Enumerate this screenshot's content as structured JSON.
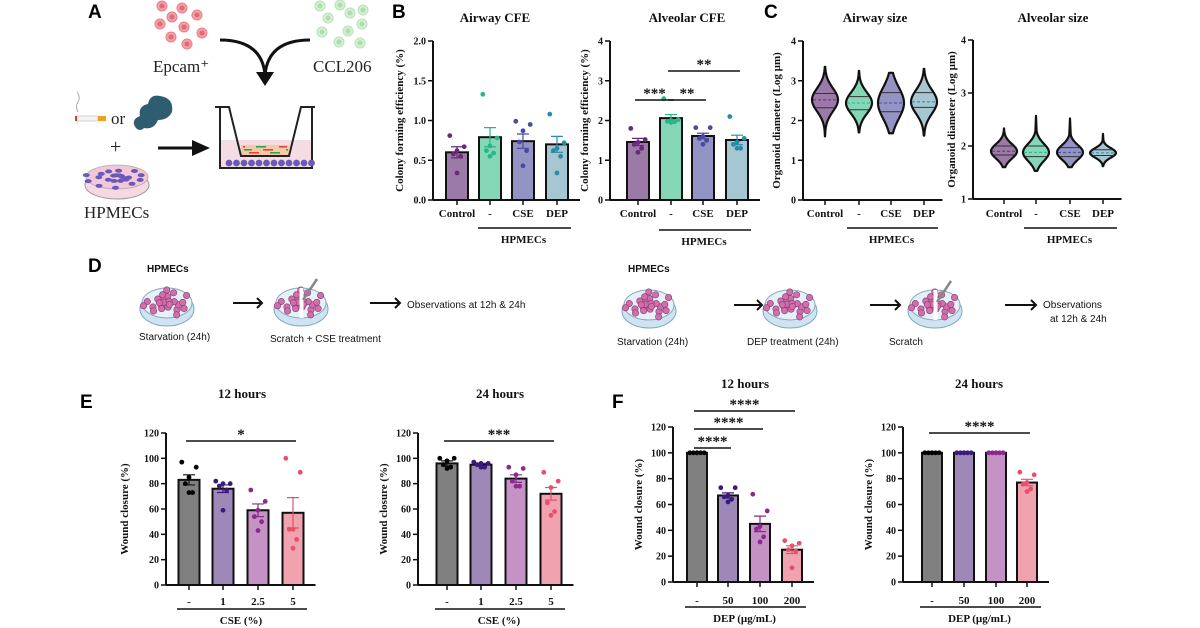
{
  "panels": {
    "a": "A",
    "b": "B",
    "c": "C",
    "d": "D",
    "e": "E",
    "f": "F"
  },
  "diagram_a": {
    "epcam": "Epcam⁺",
    "ccl206": "CCL206",
    "or": "or",
    "plus": "+",
    "hpmecs": "HPMECs",
    "colors": {
      "epcam": "#e8707a",
      "ccl206": "#a8dca8",
      "hpmec": "#5a4aa8",
      "smoke": "#2e5c70"
    }
  },
  "diagram_d": {
    "left": {
      "cells": "HPMECs",
      "step1": "Starvation (24h)",
      "step2": "Scratch + CSE treatment",
      "result": "Observations at 12h & 24h"
    },
    "right": {
      "cells": "HPMECs",
      "step1": "Starvation (24h)",
      "step2": "DEP treatment (24h)",
      "step3": "Scratch",
      "result_1": "Observations",
      "result_2": "at 12h & 24h"
    }
  },
  "chart_data": [
    {
      "type": "bar",
      "title": "Airway CFE",
      "ylabel": "Colony forming efficiency (%)",
      "ylim": [
        0,
        2
      ],
      "yticks": [
        0,
        0.5,
        1,
        1.5,
        2
      ],
      "ytick_labels": [
        "0.0",
        "0.5",
        "1.0",
        "1.5",
        "2.0"
      ],
      "categories": [
        "Control",
        "-",
        "CSE",
        "DEP"
      ],
      "group_label": "HPMECs",
      "group_span": [
        1,
        3
      ],
      "values": [
        0.6,
        0.79,
        0.74,
        0.7
      ],
      "sem": [
        0.07,
        0.12,
        0.09,
        0.1
      ],
      "points": [
        [
          0.81,
          0.67,
          0.62,
          0.58,
          0.55,
          0.34
        ],
        [
          1.33,
          0.78,
          0.68,
          0.62,
          0.59,
          0.55
        ],
        [
          0.99,
          0.95,
          0.87,
          0.73,
          0.62,
          0.43
        ],
        [
          1.08,
          0.72,
          0.65,
          0.62,
          0.55,
          0.34
        ]
      ],
      "colors": [
        "#9b7aa8",
        "#86d6b8",
        "#9494c4",
        "#a6c6d2"
      ],
      "point_colors": [
        "#6a2a7a",
        "#2bb58a",
        "#4a4aa0",
        "#2a8aa8"
      ],
      "significance": []
    },
    {
      "type": "bar",
      "title": "Alveolar CFE",
      "ylabel": "Colony forming efficiency (%)",
      "ylim": [
        0,
        4
      ],
      "yticks": [
        0,
        1,
        2,
        3,
        4
      ],
      "ytick_labels": [
        "0",
        "1",
        "2",
        "3",
        "4"
      ],
      "categories": [
        "Control",
        "-",
        "CSE",
        "DEP"
      ],
      "group_label": "HPMECs",
      "group_span": [
        1,
        3
      ],
      "values": [
        1.46,
        2.06,
        1.61,
        1.51
      ],
      "sem": [
        0.09,
        0.09,
        0.07,
        0.12
      ],
      "points": [
        [
          1.8,
          1.52,
          1.45,
          1.4,
          1.3,
          1.2
        ],
        [
          2.55,
          2.02,
          2.0,
          1.98,
          1.97,
          1.95
        ],
        [
          1.82,
          1.82,
          1.6,
          1.55,
          1.5,
          1.4
        ],
        [
          2.1,
          1.55,
          1.45,
          1.4,
          1.3,
          1.3
        ]
      ],
      "colors": [
        "#9b7aa8",
        "#86d6b8",
        "#9494c4",
        "#a6c6d2"
      ],
      "point_colors": [
        "#6a2a7a",
        "#2bb58a",
        "#4a4aa0",
        "#2a8aa8"
      ],
      "significance": [
        {
          "from": 0,
          "to": 1,
          "label": "***"
        },
        {
          "from": 1,
          "to": 2,
          "label": "**"
        },
        {
          "from": 1,
          "to": 3,
          "label": "**"
        }
      ]
    },
    {
      "type": "violin",
      "title": "Airway size",
      "ylabel": "Organoid diameter (Log µm)",
      "ylim": [
        0,
        4
      ],
      "yticks": [
        0,
        1,
        2,
        3,
        4
      ],
      "ytick_labels": [
        "0",
        "1",
        "2",
        "3",
        "4"
      ],
      "categories": [
        "Control",
        "-",
        "CSE",
        "DEP"
      ],
      "group_label": "HPMECs",
      "group_span": [
        1,
        3
      ],
      "violins": [
        {
          "min": 1.6,
          "q1": 2.32,
          "median": 2.52,
          "q3": 2.68,
          "max": 3.35
        },
        {
          "min": 1.7,
          "q1": 2.27,
          "median": 2.44,
          "q3": 2.6,
          "max": 3.25
        },
        {
          "min": 1.68,
          "q1": 2.22,
          "median": 2.44,
          "q3": 2.7,
          "max": 3.2
        },
        {
          "min": 1.62,
          "q1": 2.33,
          "median": 2.47,
          "q3": 2.7,
          "max": 3.3
        }
      ],
      "colors": [
        "#9b7aa8",
        "#86d6b8",
        "#9494c4",
        "#a6c6d2"
      ],
      "median_colors": [
        "#6a2a7a",
        "#2bb58a",
        "#4a4aa0",
        "#2a8aa8"
      ]
    },
    {
      "type": "violin",
      "title": "Alveolar size",
      "ylabel": "Organoid diameter (Log µm)",
      "ylim": [
        1,
        4
      ],
      "yticks": [
        1,
        2,
        3,
        4
      ],
      "ytick_labels": [
        "1",
        "2",
        "3",
        "4"
      ],
      "categories": [
        "Control",
        "-",
        "CSE",
        "DEP"
      ],
      "group_label": "HPMECs",
      "group_span": [
        1,
        3
      ],
      "violins": [
        {
          "min": 1.6,
          "q1": 1.83,
          "median": 1.9,
          "q3": 2.0,
          "max": 2.33
        },
        {
          "min": 1.53,
          "q1": 1.8,
          "median": 1.88,
          "q3": 2.0,
          "max": 2.57
        },
        {
          "min": 1.6,
          "q1": 1.8,
          "median": 1.88,
          "q3": 1.97,
          "max": 2.52
        },
        {
          "min": 1.62,
          "q1": 1.82,
          "median": 1.87,
          "q3": 1.93,
          "max": 2.23
        }
      ],
      "colors": [
        "#9b7aa8",
        "#86d6b8",
        "#9494c4",
        "#a6c6d2"
      ],
      "median_colors": [
        "#6a2a7a",
        "#2bb58a",
        "#4a4aa0",
        "#2a8aa8"
      ]
    },
    {
      "type": "bar",
      "title": "12 hours",
      "ylabel": "Wound closure  (%)",
      "ylim": [
        0,
        120
      ],
      "yticks": [
        0,
        20,
        40,
        60,
        80,
        100,
        120
      ],
      "ytick_labels": [
        "0",
        "20",
        "40",
        "60",
        "80",
        "100",
        "120"
      ],
      "categories": [
        "-",
        "1",
        "2.5",
        "5"
      ],
      "group_label": "CSE (%)",
      "group_span": [
        0,
        3
      ],
      "values": [
        83,
        76,
        59,
        57
      ],
      "sem": [
        4,
        3,
        5,
        12
      ],
      "points": [
        [
          97,
          93,
          85,
          80,
          73,
          73
        ],
        [
          82,
          80,
          80,
          78,
          75,
          59
        ],
        [
          75,
          66,
          59,
          54,
          50,
          43
        ],
        [
          100,
          89,
          44,
          44,
          36,
          29
        ]
      ],
      "colors": [
        "#808080",
        "#9e88b8",
        "#c492c4",
        "#f0a2ae"
      ],
      "point_colors": [
        "#000000",
        "#3a1a7a",
        "#8a2a8a",
        "#e8506a"
      ],
      "significance": [
        {
          "from": 0,
          "to": 3,
          "label": "*"
        }
      ]
    },
    {
      "type": "bar",
      "title": "24 hours",
      "ylabel": "Wound closure  (%)",
      "ylim": [
        0,
        120
      ],
      "yticks": [
        0,
        20,
        40,
        60,
        80,
        100,
        120
      ],
      "ytick_labels": [
        "0",
        "20",
        "40",
        "60",
        "80",
        "100",
        "120"
      ],
      "categories": [
        "-",
        "1",
        "2.5",
        "5"
      ],
      "group_label": "CSE (%)",
      "group_span": [
        0,
        3
      ],
      "values": [
        96,
        95,
        84,
        72
      ],
      "sem": [
        2,
        1,
        3,
        5
      ],
      "points": [
        [
          100,
          100,
          98,
          95,
          93,
          92
        ],
        [
          97,
          96,
          96,
          95,
          93,
          93
        ],
        [
          93,
          92,
          87,
          82,
          78,
          78
        ],
        [
          89,
          82,
          77,
          65,
          58,
          55
        ]
      ],
      "colors": [
        "#808080",
        "#9e88b8",
        "#c492c4",
        "#f0a2ae"
      ],
      "point_colors": [
        "#000000",
        "#3a1a7a",
        "#8a2a8a",
        "#e8506a"
      ],
      "significance": [
        {
          "from": 0,
          "to": 3,
          "label": "***"
        }
      ]
    },
    {
      "type": "bar",
      "title": "12 hours",
      "ylabel": "Wound closure  (%)",
      "ylim": [
        0,
        120
      ],
      "yticks": [
        0,
        20,
        40,
        60,
        80,
        100,
        120
      ],
      "ytick_labels": [
        "0",
        "20",
        "40",
        "60",
        "80",
        "100",
        "120"
      ],
      "categories": [
        "-",
        "50",
        "100",
        "200"
      ],
      "group_label": "DEP (µg/mL)",
      "group_span": [
        0,
        3
      ],
      "values": [
        100,
        67,
        45,
        25
      ],
      "sem": [
        0,
        2,
        6,
        3
      ],
      "points": [
        [
          100,
          100,
          100,
          100,
          100,
          100
        ],
        [
          73,
          73,
          67,
          66,
          64,
          62
        ],
        [
          68,
          55,
          43,
          41,
          35,
          31
        ],
        [
          32,
          30,
          28,
          25,
          24,
          11
        ]
      ],
      "colors": [
        "#808080",
        "#9e88b8",
        "#c492c4",
        "#f0a2ae"
      ],
      "point_colors": [
        "#000000",
        "#3a1a7a",
        "#8a2a8a",
        "#e8506a"
      ],
      "significance": [
        {
          "from": 0,
          "to": 1,
          "label": "****"
        },
        {
          "from": 0,
          "to": 2,
          "label": "****"
        },
        {
          "from": 0,
          "to": 3,
          "label": "****"
        }
      ]
    },
    {
      "type": "bar",
      "title": "24 hours",
      "ylabel": "Wound closure  (%)",
      "ylim": [
        0,
        120
      ],
      "yticks": [
        0,
        20,
        40,
        60,
        80,
        100,
        120
      ],
      "ytick_labels": [
        "0",
        "20",
        "40",
        "60",
        "80",
        "100",
        "120"
      ],
      "categories": [
        "-",
        "50",
        "100",
        "200"
      ],
      "group_label": "DEP (µg/mL)",
      "group_span": [
        0,
        3
      ],
      "values": [
        100,
        100,
        100,
        77
      ],
      "sem": [
        0,
        0,
        0,
        2.5
      ],
      "points": [
        [
          100,
          100,
          100,
          100,
          100,
          100
        ],
        [
          100,
          100,
          100,
          100,
          100,
          100
        ],
        [
          100,
          100,
          100,
          100,
          100,
          100
        ],
        [
          85,
          83,
          77,
          76,
          72,
          70
        ]
      ],
      "colors": [
        "#808080",
        "#9e88b8",
        "#c492c4",
        "#f0a2ae"
      ],
      "point_colors": [
        "#000000",
        "#3a1a7a",
        "#8a2a8a",
        "#e8506a"
      ],
      "significance": [
        {
          "from": 0,
          "to": 3,
          "label": "****"
        }
      ]
    }
  ]
}
